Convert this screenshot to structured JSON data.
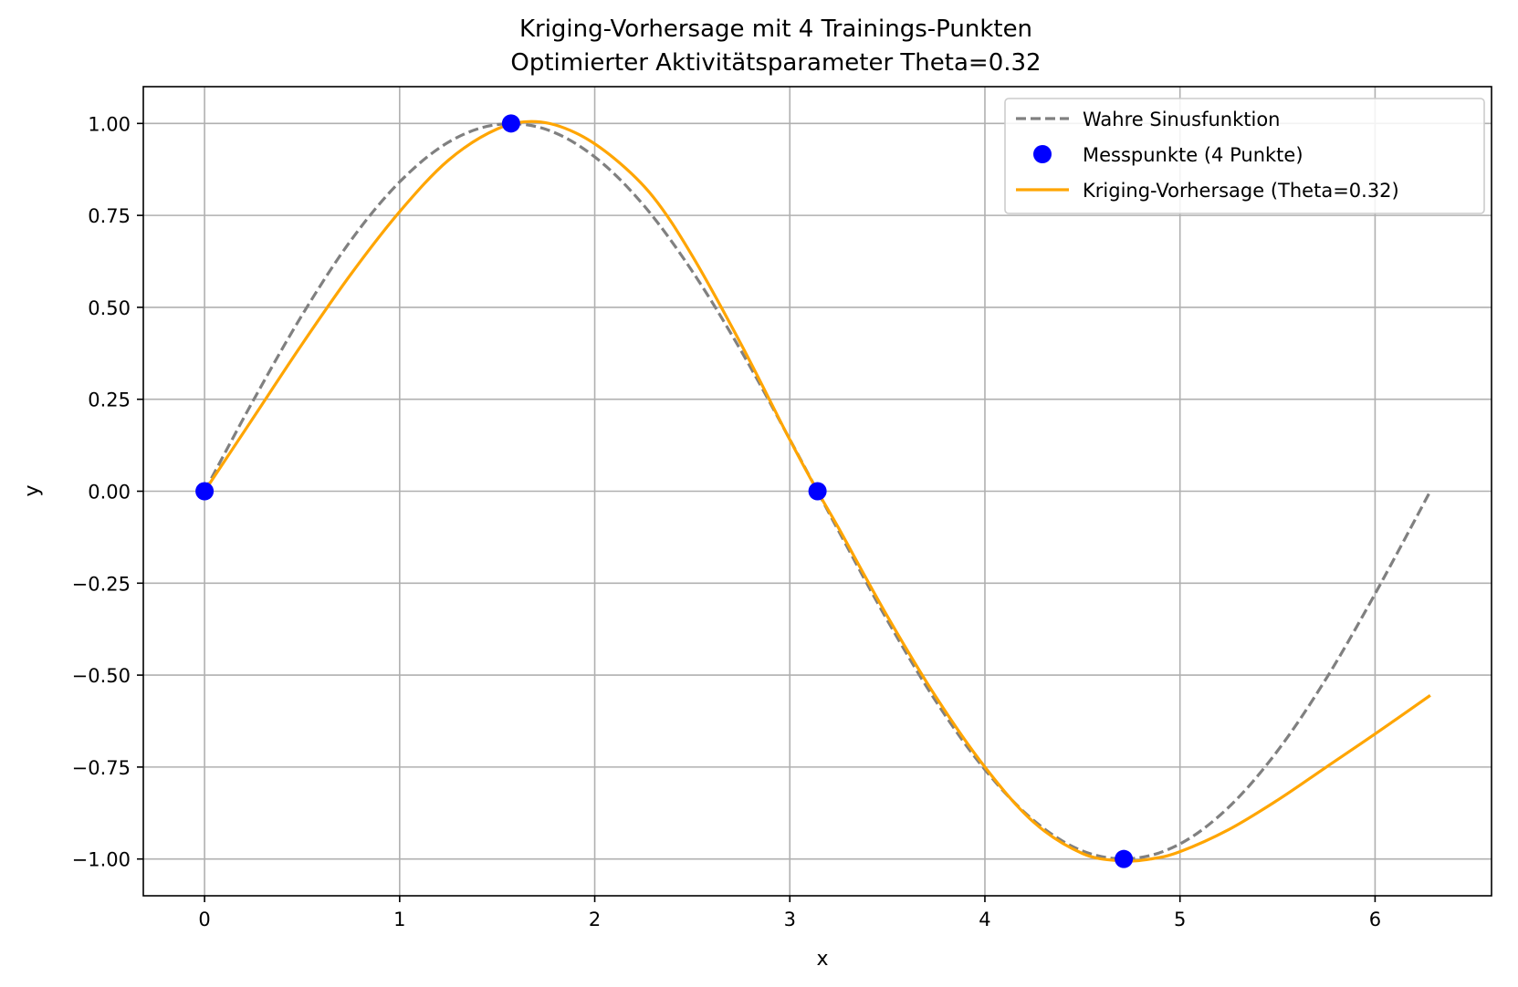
{
  "chart_data": {
    "type": "line",
    "title": "Kriging-Vorhersage mit 4 Trainings-Punkten",
    "subtitle": "Optimierter Aktivitätsparameter Theta=0.32",
    "xlabel": "x",
    "ylabel": "y",
    "xlim": [
      -0.314,
      6.597
    ],
    "ylim": [
      -1.1,
      1.1
    ],
    "xticks": [
      0,
      1,
      2,
      3,
      4,
      5,
      6
    ],
    "xtick_labels": [
      "0",
      "1",
      "2",
      "3",
      "4",
      "5",
      "6"
    ],
    "yticks": [
      1.0,
      0.75,
      0.5,
      0.25,
      0.0,
      -0.25,
      -0.5,
      -0.75,
      -1.0
    ],
    "ytick_labels": [
      "1.00",
      "0.75",
      "0.50",
      "0.25",
      "0.00",
      "−0.25",
      "−0.50",
      "−0.75",
      "−1.00"
    ],
    "grid": true,
    "legend_position": "top-right",
    "series": [
      {
        "name": "Wahre Sinusfunktion",
        "kind": "line",
        "style": "dashed",
        "color": "#808080",
        "x": [
          0.0,
          0.25,
          0.5,
          0.75,
          1.0,
          1.25,
          1.5,
          1.75,
          2.0,
          2.25,
          2.5,
          2.75,
          3.0,
          3.25,
          3.5,
          3.75,
          4.0,
          4.25,
          4.5,
          4.75,
          5.0,
          5.25,
          5.5,
          5.75,
          6.0,
          6.283
        ],
        "y": [
          0.0,
          0.247,
          0.479,
          0.682,
          0.841,
          0.949,
          0.997,
          0.984,
          0.909,
          0.778,
          0.598,
          0.382,
          0.141,
          -0.108,
          -0.351,
          -0.572,
          -0.757,
          -0.895,
          -0.978,
          -0.999,
          -0.959,
          -0.859,
          -0.706,
          -0.509,
          -0.279,
          0.0
        ]
      },
      {
        "name": "Messpunkte (4 Punkte)",
        "kind": "scatter",
        "color": "#0000ff",
        "x": [
          0.0,
          1.571,
          3.142,
          4.712
        ],
        "y": [
          0.0,
          1.0,
          0.0,
          -1.0
        ]
      },
      {
        "name": "Kriging-Vorhersage (Theta=0.32)",
        "kind": "line",
        "style": "solid",
        "color": "#ffa500",
        "x": [
          0.0,
          0.25,
          0.5,
          0.75,
          1.0,
          1.25,
          1.5,
          1.7,
          1.9,
          2.1,
          2.3,
          2.5,
          2.75,
          3.0,
          3.142,
          3.25,
          3.5,
          3.75,
          4.0,
          4.25,
          4.5,
          4.7,
          4.85,
          5.0,
          5.25,
          5.5,
          5.75,
          6.0,
          6.283
        ],
        "y": [
          0.0,
          0.2,
          0.4,
          0.59,
          0.76,
          0.9,
          0.985,
          1.005,
          0.975,
          0.905,
          0.8,
          0.64,
          0.4,
          0.14,
          0.0,
          -0.1,
          -0.34,
          -0.56,
          -0.75,
          -0.9,
          -0.985,
          -1.005,
          -1.0,
          -0.98,
          -0.92,
          -0.84,
          -0.75,
          -0.66,
          -0.555
        ]
      }
    ]
  }
}
